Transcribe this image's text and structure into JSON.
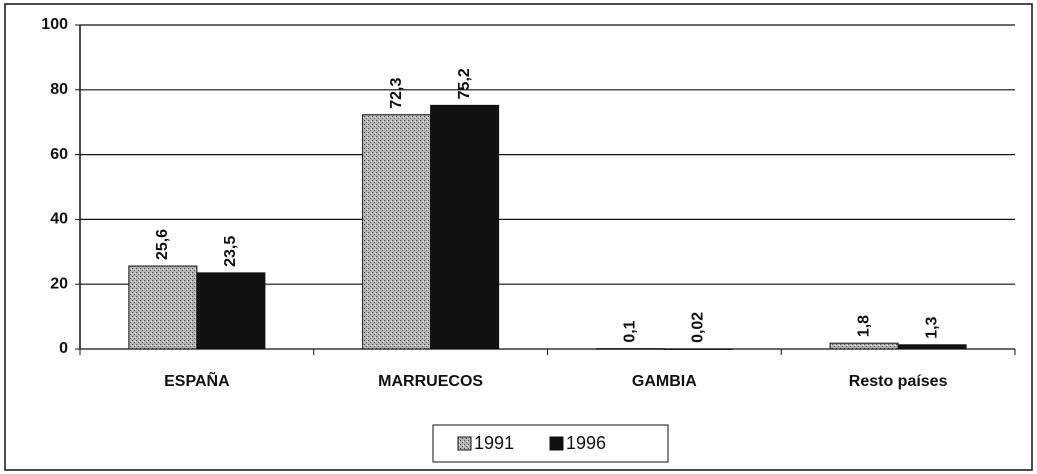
{
  "chart_data": {
    "type": "bar",
    "categories": [
      "ESPAÑA",
      "MARRUECOS",
      "GAMBIA",
      "Resto países"
    ],
    "series": [
      {
        "name": "1991",
        "color": "#9c9c9c",
        "values": [
          25.6,
          72.3,
          0.1,
          1.8
        ],
        "value_labels": [
          "25,6",
          "72,3",
          "0,1",
          "1,8"
        ]
      },
      {
        "name": "1996",
        "color": "#111111",
        "values": [
          23.5,
          75.2,
          0.02,
          1.3
        ],
        "value_labels": [
          "23,5",
          "75,2",
          "0,02",
          "1,3"
        ]
      }
    ],
    "ylim": [
      0,
      100
    ],
    "yticks": [
      0,
      20,
      40,
      60,
      80,
      100
    ],
    "grid": true,
    "legend": "bottom"
  }
}
